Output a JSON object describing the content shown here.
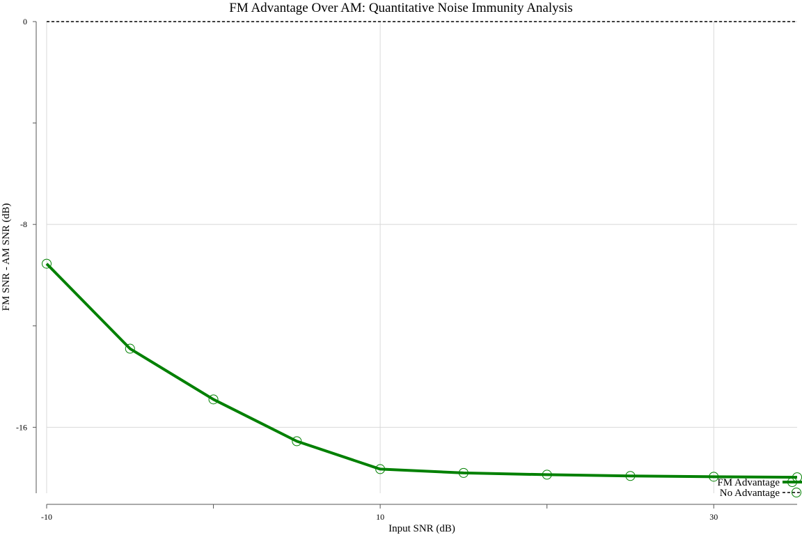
{
  "chart_data": {
    "type": "line",
    "title": "FM Advantage Over AM: Quantitative Noise Immunity Analysis",
    "xlabel": "Input SNR (dB)",
    "ylabel": "FM SNR - AM SNR (dB)",
    "xlim": [
      -10,
      35
    ],
    "ylim": [
      -18.6,
      0
    ],
    "x_ticks": [
      -10,
      10,
      30
    ],
    "x_minor_ticks": [
      0,
      20
    ],
    "y_ticks": [
      0,
      -8,
      -16
    ],
    "y_minor_ticks": [
      -4,
      -12
    ],
    "grid": true,
    "legend_position": "bottom-right",
    "series": [
      {
        "name": "FM Advantage",
        "color": "#008000",
        "marker": "open-circle",
        "x": [
          -10,
          -5,
          0,
          5,
          10,
          15,
          20,
          25,
          30,
          35
        ],
        "y": [
          -9.55,
          -12.9,
          -14.9,
          -16.55,
          -17.65,
          -17.8,
          -17.87,
          -17.92,
          -17.95,
          -17.97
        ]
      },
      {
        "name": "No Advantage",
        "color": "#000000",
        "style": "dashed",
        "x": [
          -10,
          35
        ],
        "y": [
          0,
          0
        ]
      }
    ]
  }
}
